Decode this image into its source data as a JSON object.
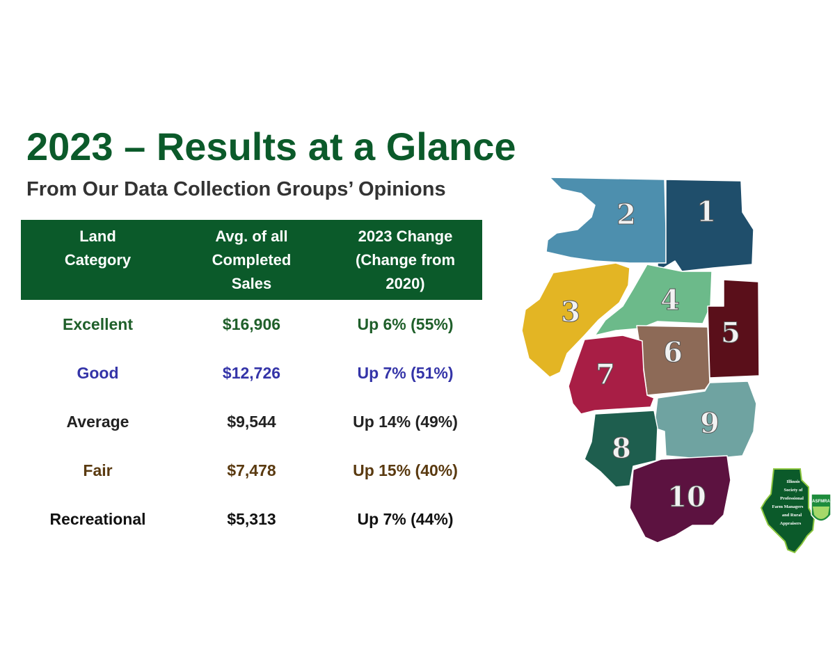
{
  "title": "2023 – Results at a Glance",
  "subtitle": "From Our Data Collection Groups’ Opinions",
  "colors": {
    "title": "#0b5a2a",
    "subtitle": "#333333",
    "header_bg": "#0b5a2a",
    "excellent": "#1f5f2a",
    "good": "#3434a8",
    "average": "#222222",
    "fair": "#5a3a10",
    "recreational": "#111111"
  },
  "table": {
    "headers": [
      [
        "Land",
        "Category"
      ],
      [
        "Avg. of  all",
        "Completed",
        "Sales"
      ],
      [
        "2023 Change",
        "(Change from",
        "2020)"
      ]
    ],
    "rows": [
      {
        "category": "Excellent",
        "avg": "$16,906",
        "change": "Up 6% (55%)",
        "color_key": "excellent"
      },
      {
        "category": "Good",
        "avg": "$12,726",
        "change": "Up 7% (51%)",
        "color_key": "good"
      },
      {
        "category": "Average",
        "avg": "$9,544",
        "change": "Up 14% (49%)",
        "color_key": "average"
      },
      {
        "category": "Fair",
        "avg": "$7,478",
        "change": "Up 15% (40%)",
        "color_key": "fair"
      },
      {
        "category": "Recreational",
        "avg": "$5,313",
        "change": "Up 7% (44%)",
        "color_key": "recreational"
      }
    ]
  },
  "map": {
    "regions": [
      {
        "label": "1",
        "color": "#1f4e6b"
      },
      {
        "label": "2",
        "color": "#4d8fae"
      },
      {
        "label": "3",
        "color": "#e3b524"
      },
      {
        "label": "4",
        "color": "#6cba8a"
      },
      {
        "label": "5",
        "color": "#5a0f1a"
      },
      {
        "label": "6",
        "color": "#8d6a57"
      },
      {
        "label": "7",
        "color": "#a81e45"
      },
      {
        "label": "8",
        "color": "#1e5e4e"
      },
      {
        "label": "9",
        "color": "#6fa3a1"
      },
      {
        "label": "10",
        "color": "#5c1240"
      }
    ]
  },
  "badge": {
    "lines": [
      "Illinois",
      "Society of",
      "Professional",
      "Farm Managers",
      "and Rural",
      "Appraisers"
    ],
    "logo_text": "ASFMRA"
  }
}
